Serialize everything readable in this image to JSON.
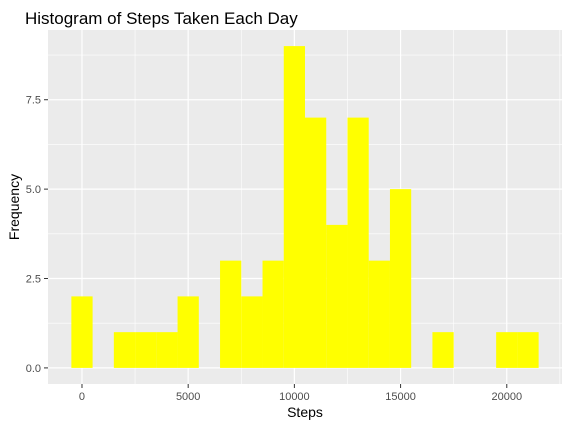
{
  "chart_data": {
    "type": "bar",
    "title": "Histogram of Steps Taken Each Day",
    "xlabel": "Steps",
    "ylabel": "Frequency",
    "bin_width": 1000,
    "bins": [
      {
        "center": 0,
        "count": 2
      },
      {
        "center": 2000,
        "count": 1
      },
      {
        "center": 3000,
        "count": 1
      },
      {
        "center": 4000,
        "count": 1
      },
      {
        "center": 5000,
        "count": 2
      },
      {
        "center": 7000,
        "count": 3
      },
      {
        "center": 8000,
        "count": 2
      },
      {
        "center": 9000,
        "count": 3
      },
      {
        "center": 10000,
        "count": 9
      },
      {
        "center": 11000,
        "count": 7
      },
      {
        "center": 12000,
        "count": 4
      },
      {
        "center": 13000,
        "count": 7
      },
      {
        "center": 14000,
        "count": 3
      },
      {
        "center": 15000,
        "count": 5
      },
      {
        "center": 17000,
        "count": 1
      },
      {
        "center": 20000,
        "count": 1
      },
      {
        "center": 21000,
        "count": 1
      }
    ],
    "xlim": [
      -1600,
      22600
    ],
    "ylim": [
      -0.45,
      9.45
    ],
    "x_ticks": [
      0,
      5000,
      10000,
      15000,
      20000
    ],
    "x_tick_labels": [
      "0",
      "5000",
      "10000",
      "15000",
      "20000"
    ],
    "y_ticks": [
      0,
      2.5,
      5,
      7.5
    ],
    "y_tick_labels": [
      "0.0",
      "2.5",
      "5.0",
      "7.5"
    ],
    "grid": true,
    "bar_color": "#ffff00",
    "panel_color": "#ebebeb",
    "grid_color": "#ffffff"
  }
}
